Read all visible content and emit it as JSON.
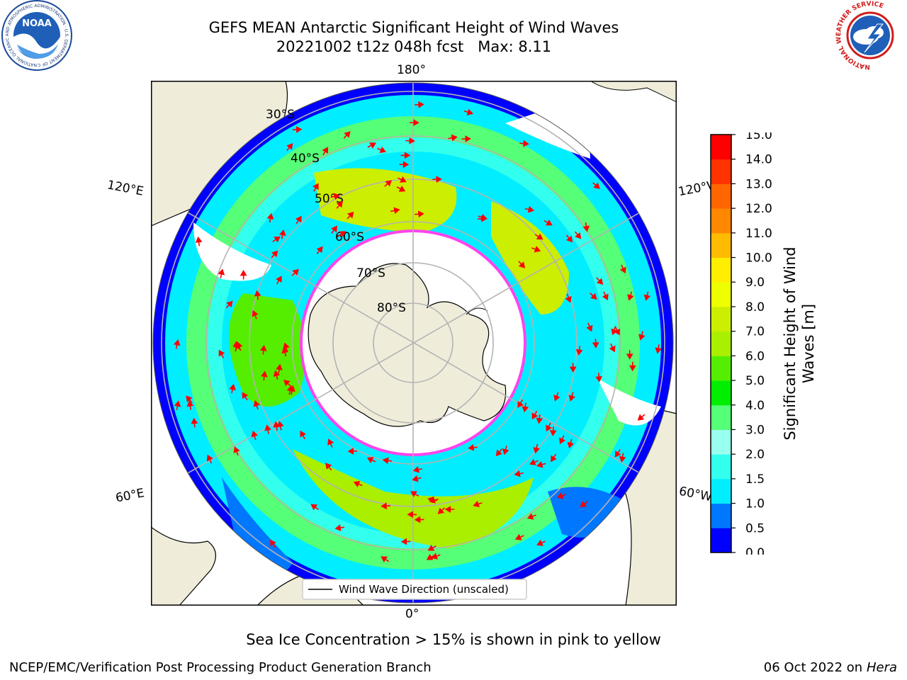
{
  "header": {
    "title_line1": "GEFS MEAN Antarctic Significant Height of Wind Waves",
    "title_line2": "20221002 t12z 048h fcst   Max: 8.11"
  },
  "logos": {
    "noaa": {
      "text": "NOAA",
      "ring_text": "NATIONAL OCEANIC AND ATMOSPHERIC ADMINISTRATION · U.S. DEPARTMENT OF COMMERCE"
    },
    "nws": {
      "ring_text": "NATIONAL WEATHER SERVICE"
    }
  },
  "map": {
    "projection": "south-polar-stereographic",
    "longitude_labels": {
      "top": "180°",
      "bottom": "0°",
      "upper_left": "120°E",
      "upper_right": "120°W",
      "lower_left": "60°E",
      "lower_right": "60°W"
    },
    "latitude_labels": [
      "30°S",
      "40°S",
      "50°S",
      "60°S",
      "70°S",
      "80°S"
    ],
    "legend_label": "Wind Wave Direction (unscaled)",
    "icons": [
      "direction-arrow-icon"
    ],
    "colors": {
      "land": "#efedda",
      "arrow": "#ff0000",
      "sea_ice_edge": "#ff44ee",
      "grid": "#b3b3b3"
    }
  },
  "colorbar": {
    "label": "Significant Height of Wind Waves [m]",
    "label_line1": "Significant Height of Wind",
    "label_line2": "Waves [m]",
    "ticks": [
      "0.0",
      "0.5",
      "1.0",
      "1.5",
      "2.0",
      "3.0",
      "4.0",
      "5.0",
      "6.0",
      "7.0",
      "8.0",
      "9.0",
      "10.0",
      "11.0",
      "12.0",
      "13.0",
      "14.0",
      "15.0"
    ],
    "colors": [
      "#0000ff",
      "#0077ff",
      "#00eeff",
      "#33ffee",
      "#99ffee",
      "#55ff77",
      "#00ee00",
      "#55ee00",
      "#aaee00",
      "#ccee00",
      "#eeff00",
      "#ffee00",
      "#ffbb00",
      "#ff8800",
      "#ff6600",
      "#ff3300",
      "#ff0000"
    ]
  },
  "notes": {
    "sea_ice": "Sea Ice Concentration > 15% is shown in pink to yellow"
  },
  "footer": {
    "left": "NCEP/EMC/Verification Post Processing Product Generation Branch",
    "right_date": "06 Oct 2022 on ",
    "right_host": "Hera"
  }
}
